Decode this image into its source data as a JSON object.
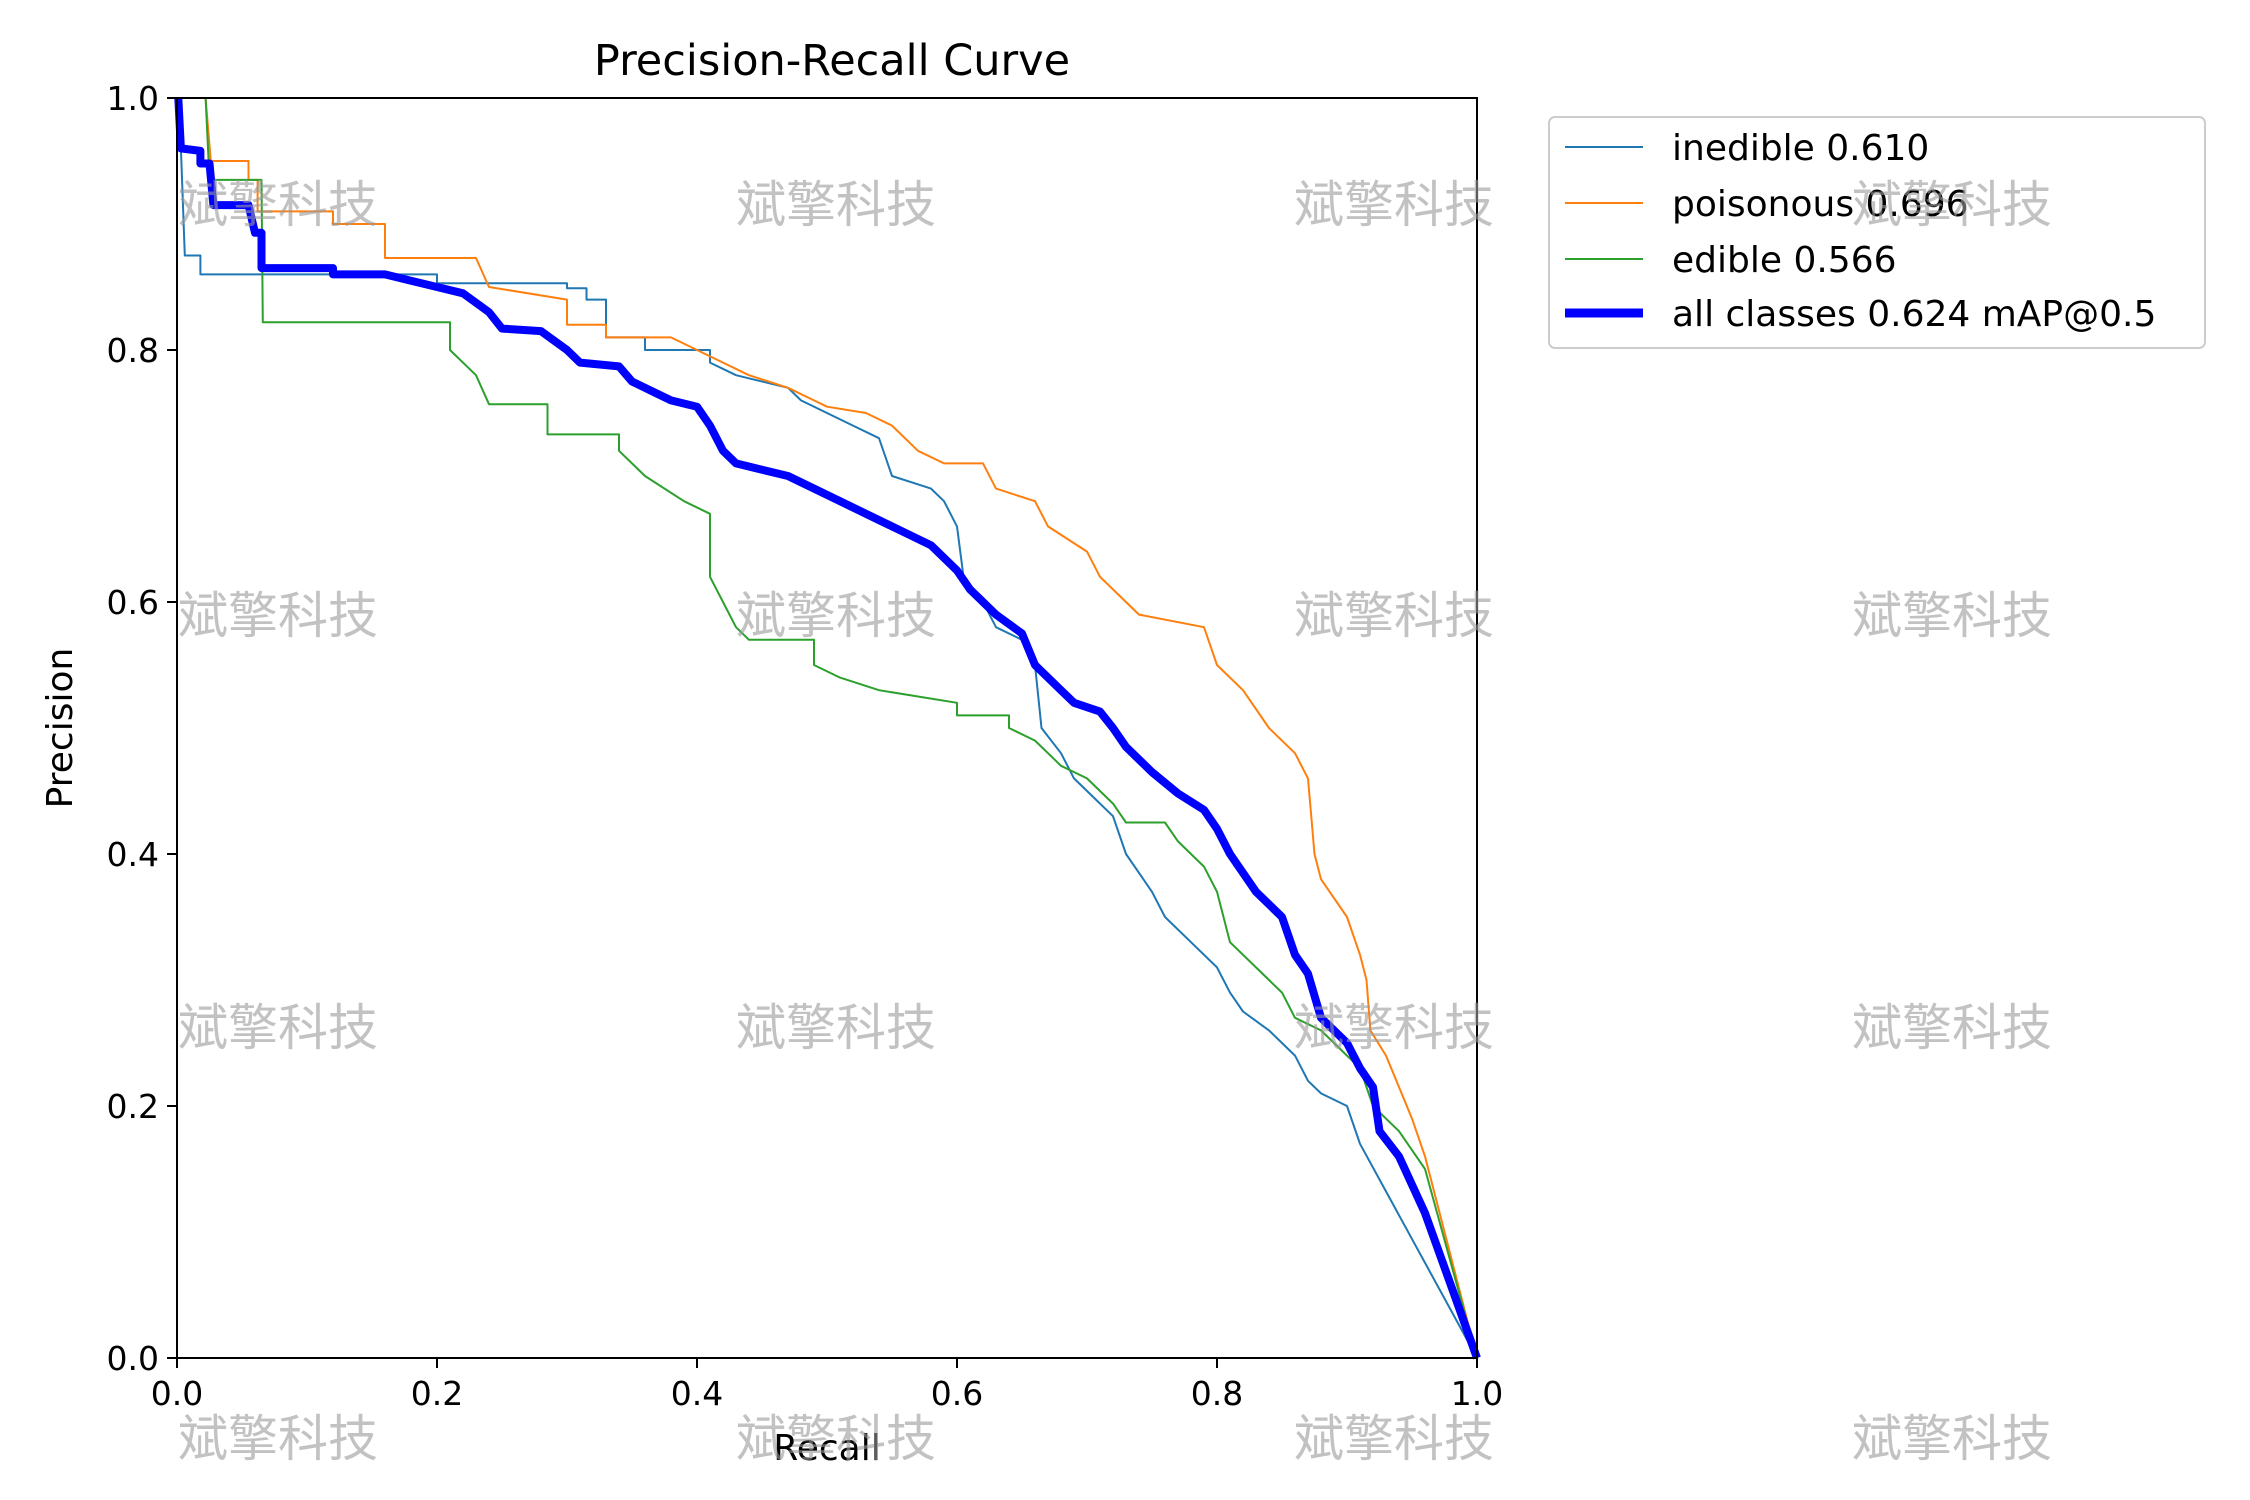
{
  "chart_data": {
    "type": "line",
    "title": "Precision-Recall Curve",
    "xlabel": "Recall",
    "ylabel": "Precision",
    "xlim": [
      0.0,
      1.0
    ],
    "ylim": [
      0.0,
      1.0
    ],
    "xticks": [
      "0.0",
      "0.2",
      "0.4",
      "0.6",
      "0.8",
      "1.0"
    ],
    "yticks": [
      "0.0",
      "0.2",
      "0.4",
      "0.6",
      "0.8",
      "1.0"
    ],
    "grid": false,
    "legend_position": "outside-top-right",
    "series": [
      {
        "name": "inedible 0.610",
        "color": "#1f77b4",
        "width": "thin",
        "points": [
          [
            0.0,
            1.0
          ],
          [
            0.003,
            0.96
          ],
          [
            0.006,
            0.875
          ],
          [
            0.018,
            0.875
          ],
          [
            0.018,
            0.86
          ],
          [
            0.2,
            0.86
          ],
          [
            0.2,
            0.853
          ],
          [
            0.3,
            0.853
          ],
          [
            0.3,
            0.849
          ],
          [
            0.315,
            0.849
          ],
          [
            0.315,
            0.84
          ],
          [
            0.33,
            0.84
          ],
          [
            0.33,
            0.81
          ],
          [
            0.36,
            0.81
          ],
          [
            0.36,
            0.8
          ],
          [
            0.41,
            0.8
          ],
          [
            0.41,
            0.79
          ],
          [
            0.43,
            0.78
          ],
          [
            0.47,
            0.77
          ],
          [
            0.48,
            0.76
          ],
          [
            0.5,
            0.75
          ],
          [
            0.52,
            0.74
          ],
          [
            0.54,
            0.73
          ],
          [
            0.55,
            0.7
          ],
          [
            0.58,
            0.69
          ],
          [
            0.59,
            0.68
          ],
          [
            0.6,
            0.66
          ],
          [
            0.605,
            0.62
          ],
          [
            0.62,
            0.6
          ],
          [
            0.63,
            0.58
          ],
          [
            0.65,
            0.57
          ],
          [
            0.66,
            0.55
          ],
          [
            0.665,
            0.5
          ],
          [
            0.68,
            0.48
          ],
          [
            0.69,
            0.46
          ],
          [
            0.7,
            0.45
          ],
          [
            0.72,
            0.43
          ],
          [
            0.73,
            0.4
          ],
          [
            0.75,
            0.37
          ],
          [
            0.76,
            0.35
          ],
          [
            0.78,
            0.33
          ],
          [
            0.8,
            0.31
          ],
          [
            0.81,
            0.29
          ],
          [
            0.82,
            0.275
          ],
          [
            0.84,
            0.26
          ],
          [
            0.85,
            0.25
          ],
          [
            0.86,
            0.24
          ],
          [
            0.87,
            0.22
          ],
          [
            0.88,
            0.21
          ],
          [
            0.9,
            0.2
          ],
          [
            0.91,
            0.17
          ],
          [
            1.0,
            0.0
          ]
        ]
      },
      {
        "name": "poisonous 0.696",
        "color": "#ff7f0e",
        "width": "thin",
        "points": [
          [
            0.022,
            1.0
          ],
          [
            0.026,
            0.95
          ],
          [
            0.055,
            0.95
          ],
          [
            0.055,
            0.935
          ],
          [
            0.062,
            0.935
          ],
          [
            0.062,
            0.91
          ],
          [
            0.12,
            0.91
          ],
          [
            0.12,
            0.9
          ],
          [
            0.16,
            0.9
          ],
          [
            0.16,
            0.873
          ],
          [
            0.23,
            0.873
          ],
          [
            0.24,
            0.85
          ],
          [
            0.3,
            0.84
          ],
          [
            0.3,
            0.82
          ],
          [
            0.33,
            0.82
          ],
          [
            0.33,
            0.81
          ],
          [
            0.38,
            0.81
          ],
          [
            0.4,
            0.8
          ],
          [
            0.42,
            0.79
          ],
          [
            0.44,
            0.78
          ],
          [
            0.47,
            0.77
          ],
          [
            0.49,
            0.76
          ],
          [
            0.5,
            0.755
          ],
          [
            0.53,
            0.75
          ],
          [
            0.55,
            0.74
          ],
          [
            0.57,
            0.72
          ],
          [
            0.59,
            0.71
          ],
          [
            0.62,
            0.71
          ],
          [
            0.63,
            0.69
          ],
          [
            0.66,
            0.68
          ],
          [
            0.67,
            0.66
          ],
          [
            0.7,
            0.64
          ],
          [
            0.71,
            0.62
          ],
          [
            0.73,
            0.6
          ],
          [
            0.74,
            0.59
          ],
          [
            0.79,
            0.58
          ],
          [
            0.8,
            0.55
          ],
          [
            0.82,
            0.53
          ],
          [
            0.84,
            0.5
          ],
          [
            0.86,
            0.48
          ],
          [
            0.87,
            0.46
          ],
          [
            0.875,
            0.4
          ],
          [
            0.88,
            0.38
          ],
          [
            0.9,
            0.35
          ],
          [
            0.91,
            0.32
          ],
          [
            0.915,
            0.3
          ],
          [
            0.918,
            0.26
          ],
          [
            0.93,
            0.24
          ],
          [
            0.95,
            0.19
          ],
          [
            0.96,
            0.16
          ],
          [
            1.0,
            0.0
          ]
        ]
      },
      {
        "name": "edible 0.566",
        "color": "#2ca02c",
        "width": "thin",
        "points": [
          [
            0.022,
            1.0
          ],
          [
            0.025,
            0.935
          ],
          [
            0.065,
            0.935
          ],
          [
            0.066,
            0.822
          ],
          [
            0.21,
            0.822
          ],
          [
            0.21,
            0.8
          ],
          [
            0.23,
            0.78
          ],
          [
            0.24,
            0.757
          ],
          [
            0.285,
            0.757
          ],
          [
            0.285,
            0.733
          ],
          [
            0.34,
            0.733
          ],
          [
            0.34,
            0.72
          ],
          [
            0.35,
            0.71
          ],
          [
            0.36,
            0.7
          ],
          [
            0.39,
            0.68
          ],
          [
            0.41,
            0.67
          ],
          [
            0.41,
            0.62
          ],
          [
            0.42,
            0.6
          ],
          [
            0.43,
            0.58
          ],
          [
            0.44,
            0.57
          ],
          [
            0.49,
            0.57
          ],
          [
            0.49,
            0.55
          ],
          [
            0.51,
            0.54
          ],
          [
            0.54,
            0.53
          ],
          [
            0.6,
            0.52
          ],
          [
            0.6,
            0.51
          ],
          [
            0.64,
            0.51
          ],
          [
            0.64,
            0.5
          ],
          [
            0.66,
            0.49
          ],
          [
            0.67,
            0.48
          ],
          [
            0.68,
            0.47
          ],
          [
            0.7,
            0.46
          ],
          [
            0.72,
            0.44
          ],
          [
            0.73,
            0.425
          ],
          [
            0.76,
            0.425
          ],
          [
            0.77,
            0.41
          ],
          [
            0.78,
            0.4
          ],
          [
            0.79,
            0.39
          ],
          [
            0.8,
            0.37
          ],
          [
            0.81,
            0.33
          ],
          [
            0.83,
            0.31
          ],
          [
            0.85,
            0.29
          ],
          [
            0.86,
            0.27
          ],
          [
            0.88,
            0.26
          ],
          [
            0.9,
            0.24
          ],
          [
            0.91,
            0.23
          ],
          [
            0.92,
            0.2
          ],
          [
            0.94,
            0.18
          ],
          [
            0.96,
            0.15
          ],
          [
            1.0,
            0.0
          ]
        ]
      },
      {
        "name": "all classes 0.624 mAP@0.5",
        "color": "#0000ff",
        "width": "thick",
        "points": [
          [
            0.001,
            1.0
          ],
          [
            0.003,
            0.96
          ],
          [
            0.018,
            0.958
          ],
          [
            0.018,
            0.948
          ],
          [
            0.025,
            0.948
          ],
          [
            0.028,
            0.915
          ],
          [
            0.055,
            0.915
          ],
          [
            0.06,
            0.893
          ],
          [
            0.065,
            0.893
          ],
          [
            0.065,
            0.865
          ],
          [
            0.12,
            0.865
          ],
          [
            0.12,
            0.86
          ],
          [
            0.16,
            0.86
          ],
          [
            0.18,
            0.855
          ],
          [
            0.2,
            0.85
          ],
          [
            0.22,
            0.845
          ],
          [
            0.24,
            0.83
          ],
          [
            0.25,
            0.817
          ],
          [
            0.28,
            0.815
          ],
          [
            0.3,
            0.8
          ],
          [
            0.31,
            0.79
          ],
          [
            0.34,
            0.787
          ],
          [
            0.35,
            0.775
          ],
          [
            0.37,
            0.765
          ],
          [
            0.38,
            0.76
          ],
          [
            0.4,
            0.755
          ],
          [
            0.41,
            0.74
          ],
          [
            0.42,
            0.72
          ],
          [
            0.43,
            0.71
          ],
          [
            0.45,
            0.705
          ],
          [
            0.47,
            0.7
          ],
          [
            0.5,
            0.685
          ],
          [
            0.52,
            0.675
          ],
          [
            0.54,
            0.665
          ],
          [
            0.56,
            0.655
          ],
          [
            0.58,
            0.645
          ],
          [
            0.6,
            0.625
          ],
          [
            0.61,
            0.61
          ],
          [
            0.62,
            0.6
          ],
          [
            0.63,
            0.59
          ],
          [
            0.65,
            0.575
          ],
          [
            0.66,
            0.55
          ],
          [
            0.68,
            0.53
          ],
          [
            0.69,
            0.52
          ],
          [
            0.71,
            0.513
          ],
          [
            0.72,
            0.5
          ],
          [
            0.73,
            0.485
          ],
          [
            0.75,
            0.465
          ],
          [
            0.77,
            0.448
          ],
          [
            0.79,
            0.435
          ],
          [
            0.8,
            0.42
          ],
          [
            0.81,
            0.4
          ],
          [
            0.82,
            0.385
          ],
          [
            0.83,
            0.37
          ],
          [
            0.85,
            0.35
          ],
          [
            0.86,
            0.32
          ],
          [
            0.87,
            0.305
          ],
          [
            0.88,
            0.27
          ],
          [
            0.9,
            0.25
          ],
          [
            0.91,
            0.23
          ],
          [
            0.92,
            0.215
          ],
          [
            0.925,
            0.18
          ],
          [
            0.94,
            0.16
          ],
          [
            0.96,
            0.115
          ],
          [
            1.0,
            0.0
          ]
        ]
      }
    ]
  },
  "watermark": {
    "text": "斌擎科技"
  }
}
